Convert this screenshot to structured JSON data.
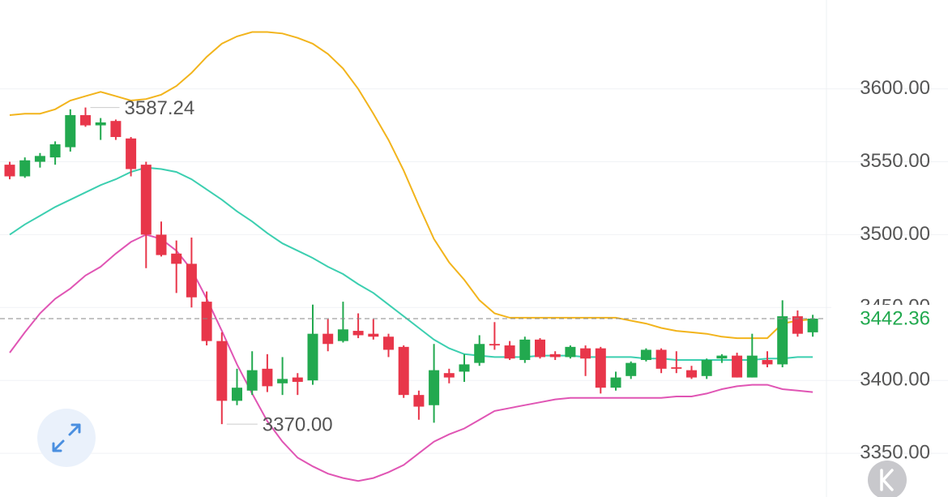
{
  "chart_data": {
    "type": "candlestick",
    "ylim": [
      3320,
      3661
    ],
    "yticks": [
      {
        "value": 3350,
        "label": "3350.00"
      },
      {
        "value": 3400,
        "label": "3400.00"
      },
      {
        "value": 3450,
        "label": "3450.00"
      },
      {
        "value": 3500,
        "label": "3500.00"
      },
      {
        "value": 3550,
        "label": "3550.00"
      },
      {
        "value": 3600,
        "label": "3600.00"
      }
    ],
    "grid": true,
    "up_color": "#22a94f",
    "down_color": "#e8364a",
    "open": [
      3548,
      3540,
      3550,
      3553,
      3560,
      3582,
      3575,
      3578,
      3566,
      3548,
      3500,
      3487,
      3480,
      3454,
      3427,
      3386,
      3393,
      3408,
      3398,
      3402,
      3400,
      3432,
      3427,
      3434,
      3432,
      3430,
      3423,
      3390,
      3383,
      3405,
      3406,
      3412,
      3425,
      3424,
      3414,
      3428,
      3418,
      3416,
      3422,
      3422,
      3395,
      3403,
      3414,
      3421,
      3409,
      3407,
      3403,
      3415,
      3417,
      3402,
      3414,
      3411,
      3444,
      3433
    ],
    "high": [
      3550,
      3553,
      3556,
      3564,
      3586,
      3587.24,
      3580,
      3579,
      3567,
      3550,
      3509,
      3496,
      3498,
      3461,
      3433,
      3408,
      3420,
      3418,
      3416,
      3405,
      3452,
      3442,
      3454,
      3446,
      3442,
      3432,
      3424,
      3393,
      3425,
      3408,
      3418,
      3431,
      3440,
      3427,
      3430,
      3429,
      3420,
      3424,
      3424,
      3423,
      3406,
      3413,
      3422,
      3422,
      3420,
      3410,
      3415,
      3418,
      3419,
      3432,
      3420,
      3455,
      3448,
      3445
    ],
    "low": [
      3538,
      3539,
      3546,
      3548,
      3557,
      3574,
      3565,
      3565,
      3540,
      3477,
      3485,
      3460,
      3450,
      3424,
      3370,
      3383,
      3390,
      3392,
      3390,
      3390,
      3397,
      3420,
      3426,
      3429,
      3428,
      3416,
      3388,
      3373,
      3371,
      3398,
      3399,
      3410,
      3421,
      3414,
      3412,
      3415,
      3414,
      3415,
      3403,
      3391,
      3393,
      3401,
      3413,
      3405,
      3405,
      3401,
      3401,
      3412,
      3402,
      3402,
      3409,
      3409,
      3430,
      3430
    ],
    "close": [
      3540,
      3551,
      3554,
      3562,
      3582,
      3575,
      3577,
      3567,
      3545,
      3500,
      3486,
      3480,
      3457,
      3427,
      3386,
      3395,
      3407,
      3396,
      3401,
      3399,
      3432,
      3425,
      3435,
      3431,
      3430,
      3421,
      3390,
      3382,
      3407,
      3402,
      3411,
      3425,
      3424,
      3415,
      3428,
      3416,
      3416,
      3423,
      3415,
      3395,
      3402,
      3412,
      3421,
      3408,
      3408,
      3402,
      3414,
      3417,
      3402,
      3417,
      3411,
      3444,
      3432,
      3442.36
    ],
    "series": [
      {
        "color": "#f2b41c",
        "values": [
          3582,
          3583,
          3583,
          3586,
          3592,
          3595,
          3598,
          3595,
          3592,
          3593,
          3596,
          3602,
          3611,
          3622,
          3631,
          3636,
          3639,
          3639,
          3638,
          3635,
          3631,
          3624,
          3614,
          3600,
          3583,
          3565,
          3544,
          3520,
          3497,
          3481,
          3469,
          3455,
          3446,
          3443,
          3443,
          3443,
          3443,
          3443,
          3443,
          3443,
          3443,
          3441,
          3439,
          3436,
          3434,
          3433,
          3432,
          3430,
          3429,
          3429,
          3429,
          3439,
          3441,
          3442
        ]
      },
      {
        "color": "#3ccfb0",
        "values": [
          3500,
          3507,
          3513,
          3519,
          3524,
          3529,
          3534,
          3538,
          3543,
          3546,
          3545,
          3543,
          3538,
          3531,
          3524,
          3516,
          3509,
          3501,
          3494,
          3489,
          3484,
          3478,
          3473,
          3466,
          3460,
          3452,
          3444,
          3436,
          3428,
          3422,
          3418,
          3417,
          3416,
          3416,
          3416,
          3417,
          3417,
          3417,
          3416,
          3416,
          3416,
          3416,
          3415,
          3415,
          3414,
          3414,
          3414,
          3414,
          3414,
          3414,
          3415,
          3415,
          3416,
          3416
        ]
      },
      {
        "color": "#e055b4",
        "values": [
          3419,
          3433,
          3446,
          3456,
          3463,
          3472,
          3478,
          3487,
          3495,
          3500,
          3497,
          3489,
          3476,
          3456,
          3434,
          3411,
          3391,
          3372,
          3358,
          3347,
          3341,
          3336,
          3333,
          3331,
          3333,
          3337,
          3342,
          3350,
          3358,
          3363,
          3367,
          3373,
          3379,
          3381,
          3383,
          3385,
          3387,
          3388,
          3388,
          3388,
          3388,
          3388,
          3388,
          3388,
          3389,
          3389,
          3391,
          3394,
          3396,
          3397,
          3397,
          3394,
          3393,
          3392
        ]
      }
    ],
    "max_label": {
      "value": 3587.24,
      "label": "3587.24"
    },
    "min_label": {
      "value": 3370,
      "label": "3370.00"
    },
    "last_price": {
      "value": 3442.36,
      "label": "3442.36"
    }
  }
}
